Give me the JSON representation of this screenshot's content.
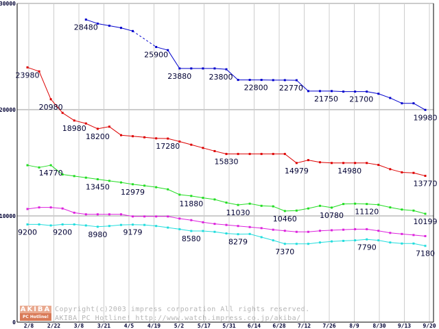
{
  "footer": {
    "logo_top": "AKIBA",
    "logo_bottom": "PC Hotline!",
    "copyright": "Copyright(c)2003 impress corporation All rights reserved.",
    "url_line": "AKIBA PC Hotline!  http://www.watch.impress.co.jp/akiba/"
  },
  "chart_data": {
    "type": "line",
    "title": "",
    "xlabel": "",
    "ylabel": "",
    "ylim": [
      0,
      30000
    ],
    "y_ticks": [
      0,
      10000,
      20000,
      30000
    ],
    "grid": true,
    "x_tick_labels": [
      "2/8",
      "2/22",
      "3/8",
      "3/21",
      "4/5",
      "4/19",
      "5/2",
      "5/17",
      "5/31",
      "6/14",
      "6/28",
      "7/12",
      "7/26",
      "8/9",
      "8/30",
      "9/13",
      "9/20"
    ],
    "point_count": 35,
    "colors": {
      "blue": "#0000cc",
      "red": "#dd0000",
      "green": "#22dd22",
      "magenta": "#dd22dd",
      "cyan": "#22dddd"
    },
    "series": [
      {
        "name": "blue",
        "color": "#0000cc",
        "dashed_between": [
          9,
          11
        ],
        "values": [
          null,
          null,
          null,
          null,
          null,
          28480,
          28100,
          27900,
          27700,
          27400,
          null,
          25900,
          25600,
          23880,
          23880,
          23880,
          23880,
          23800,
          22800,
          22800,
          22800,
          22780,
          22780,
          22770,
          21750,
          21750,
          21750,
          21700,
          21700,
          21700,
          21500,
          21100,
          20600,
          20600,
          19980
        ]
      },
      {
        "name": "red",
        "color": "#dd0000",
        "values": [
          23980,
          23600,
          20980,
          19700,
          18980,
          18700,
          18200,
          18400,
          17600,
          17500,
          17400,
          17300,
          17280,
          17000,
          16700,
          16400,
          16100,
          15830,
          15830,
          15830,
          15830,
          15830,
          15830,
          14979,
          15250,
          15050,
          14980,
          14980,
          14980,
          14980,
          14800,
          14400,
          14100,
          14050,
          13770
        ]
      },
      {
        "name": "green",
        "color": "#22dd22",
        "values": [
          14770,
          14560,
          14770,
          13900,
          13750,
          13600,
          13450,
          13300,
          13150,
          12979,
          12850,
          12700,
          12500,
          12000,
          11880,
          11700,
          11550,
          11250,
          11030,
          11150,
          10950,
          10900,
          10460,
          10500,
          10700,
          10950,
          10780,
          11120,
          11150,
          11120,
          11050,
          10800,
          10600,
          10500,
          10199
        ]
      },
      {
        "name": "magenta",
        "color": "#dd22dd",
        "values": [
          10650,
          10800,
          10800,
          10700,
          10300,
          10150,
          10150,
          10150,
          10150,
          9950,
          9950,
          9950,
          9950,
          9750,
          9600,
          9400,
          9250,
          9150,
          9050,
          8950,
          8850,
          8700,
          8600,
          8500,
          8500,
          8600,
          8650,
          8700,
          8750,
          8750,
          8600,
          8400,
          8300,
          8200,
          8100
        ]
      },
      {
        "name": "cyan",
        "color": "#22dddd",
        "values": [
          9200,
          9200,
          9100,
          9200,
          9200,
          9100,
          8980,
          9050,
          9150,
          9179,
          9150,
          9050,
          8900,
          8750,
          8580,
          8580,
          8500,
          8350,
          8279,
          8300,
          8000,
          7700,
          7370,
          7370,
          7370,
          7500,
          7600,
          7650,
          7700,
          7790,
          7700,
          7500,
          7400,
          7400,
          7180
        ]
      }
    ],
    "data_labels": [
      {
        "series": "blue",
        "index": 5,
        "text": "28480",
        "pos": "below"
      },
      {
        "series": "blue",
        "index": 11,
        "text": "25900",
        "pos": "below"
      },
      {
        "series": "blue",
        "index": 13,
        "text": "23880",
        "pos": "below"
      },
      {
        "series": "blue",
        "index": 17,
        "text": "23800",
        "pos": "below-left"
      },
      {
        "series": "blue",
        "index": 20,
        "text": "22800",
        "pos": "below-left"
      },
      {
        "series": "blue",
        "index": 23,
        "text": "22770",
        "pos": "below-left"
      },
      {
        "series": "blue",
        "index": 26,
        "text": "21750",
        "pos": "below-left"
      },
      {
        "series": "blue",
        "index": 29,
        "text": "21700",
        "pos": "below-left"
      },
      {
        "series": "blue",
        "index": 34,
        "text": "19980",
        "pos": "below"
      },
      {
        "series": "red",
        "index": 0,
        "text": "23980",
        "pos": "below"
      },
      {
        "series": "red",
        "index": 2,
        "text": "20980",
        "pos": "below"
      },
      {
        "series": "red",
        "index": 4,
        "text": "18980",
        "pos": "below"
      },
      {
        "series": "red",
        "index": 6,
        "text": "18200",
        "pos": "below"
      },
      {
        "series": "red",
        "index": 12,
        "text": "17280",
        "pos": "below"
      },
      {
        "series": "red",
        "index": 17,
        "text": "15830",
        "pos": "below"
      },
      {
        "series": "red",
        "index": 23,
        "text": "14979",
        "pos": "below"
      },
      {
        "series": "red",
        "index": 28,
        "text": "14980",
        "pos": "below-left"
      },
      {
        "series": "red",
        "index": 34,
        "text": "13770",
        "pos": "below"
      },
      {
        "series": "green",
        "index": 2,
        "text": "14770",
        "pos": "below"
      },
      {
        "series": "green",
        "index": 6,
        "text": "13450",
        "pos": "below"
      },
      {
        "series": "green",
        "index": 9,
        "text": "12979",
        "pos": "below"
      },
      {
        "series": "green",
        "index": 14,
        "text": "11880",
        "pos": "below"
      },
      {
        "series": "green",
        "index": 18,
        "text": "11030",
        "pos": "below"
      },
      {
        "series": "green",
        "index": 22,
        "text": "10460",
        "pos": "below"
      },
      {
        "series": "green",
        "index": 26,
        "text": "10780",
        "pos": "below"
      },
      {
        "series": "green",
        "index": 29,
        "text": "11120",
        "pos": "below"
      },
      {
        "series": "green",
        "index": 34,
        "text": "10199",
        "pos": "below"
      },
      {
        "series": "cyan",
        "index": 0,
        "text": "9200",
        "pos": "below"
      },
      {
        "series": "cyan",
        "index": 3,
        "text": "9200",
        "pos": "below"
      },
      {
        "series": "cyan",
        "index": 6,
        "text": "8980",
        "pos": "below"
      },
      {
        "series": "cyan",
        "index": 9,
        "text": "9179",
        "pos": "below"
      },
      {
        "series": "cyan",
        "index": 14,
        "text": "8580",
        "pos": "below"
      },
      {
        "series": "cyan",
        "index": 18,
        "text": "8279",
        "pos": "below"
      },
      {
        "series": "cyan",
        "index": 22,
        "text": "7370",
        "pos": "below"
      },
      {
        "series": "cyan",
        "index": 29,
        "text": "7790",
        "pos": "below"
      },
      {
        "series": "cyan",
        "index": 34,
        "text": "7180",
        "pos": "below"
      }
    ]
  }
}
